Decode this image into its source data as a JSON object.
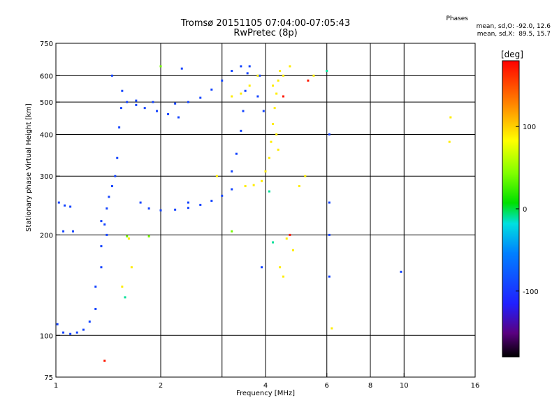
{
  "header": {
    "title_line1": "Tromsø 20151105 07:04:00-07:05:43",
    "title_line2": "RwPretec (8p)"
  },
  "stats": {
    "title": "Phases",
    "o_line": "mean, sd,O: -92.0, 12.6",
    "x_line": "mean, sd,X:  89.5, 15.7"
  },
  "colorbar": {
    "unit": "[deg]",
    "range": [
      -180,
      180
    ],
    "tick_labels": [
      "100",
      "0",
      "-100"
    ],
    "tick_values": [
      100,
      0,
      -100
    ]
  },
  "chart_data": {
    "type": "scatter",
    "title": "Tromsø 20151105 07:04:00-07:05:43",
    "subtitle": "RwPretec (8p)",
    "xlabel": "Frequency [MHz]",
    "ylabel": "Stationary phase Virtual Height [km]",
    "x_scale": "log",
    "y_scale": "log",
    "xlim": [
      1,
      16
    ],
    "ylim": [
      75,
      750
    ],
    "x_ticks": [
      1,
      2,
      4,
      6,
      8,
      10,
      16
    ],
    "x_tick_labels": [
      "1",
      "2",
      "4",
      "6",
      "8",
      "10",
      "16"
    ],
    "x_grid": [
      2,
      3,
      4,
      6,
      8,
      10
    ],
    "y_ticks": [
      75,
      100,
      200,
      300,
      400,
      500,
      600,
      750
    ],
    "y_tick_labels": [
      "75",
      "100",
      "200",
      "300",
      "400",
      "500",
      "600",
      "750"
    ],
    "y_grid": [
      100,
      200,
      300,
      400,
      500,
      600
    ],
    "grid": true,
    "color_encoding": "phase [deg]",
    "series": [
      {
        "mode": "O",
        "phase_deg": -92,
        "points": [
          [
            1.02,
            250
          ],
          [
            1.06,
            245
          ],
          [
            1.1,
            243
          ],
          [
            1.05,
            205
          ],
          [
            1.12,
            205
          ],
          [
            1.01,
            108
          ],
          [
            1.05,
            102
          ],
          [
            1.1,
            101
          ],
          [
            1.15,
            102
          ],
          [
            1.2,
            104
          ],
          [
            1.25,
            110
          ],
          [
            1.3,
            120
          ],
          [
            1.3,
            140
          ],
          [
            1.35,
            160
          ],
          [
            1.35,
            185
          ],
          [
            1.4,
            200
          ],
          [
            1.38,
            215
          ],
          [
            1.4,
            240
          ],
          [
            1.42,
            260
          ],
          [
            1.45,
            280
          ],
          [
            1.48,
            300
          ],
          [
            1.5,
            340
          ],
          [
            1.52,
            420
          ],
          [
            1.54,
            480
          ],
          [
            1.55,
            540
          ],
          [
            1.6,
            500
          ],
          [
            1.7,
            490
          ],
          [
            1.8,
            480
          ],
          [
            1.95,
            470
          ],
          [
            2.1,
            460
          ],
          [
            2.25,
            450
          ],
          [
            1.75,
            250
          ],
          [
            1.85,
            240
          ],
          [
            2.0,
            237
          ],
          [
            2.2,
            238
          ],
          [
            2.4,
            241
          ],
          [
            2.6,
            246
          ],
          [
            2.8,
            253
          ],
          [
            3.0,
            262
          ],
          [
            3.2,
            274
          ],
          [
            3.2,
            310
          ],
          [
            3.3,
            350
          ],
          [
            3.4,
            410
          ],
          [
            3.45,
            470
          ],
          [
            3.5,
            540
          ],
          [
            3.55,
            610
          ],
          [
            3.6,
            640
          ],
          [
            3.4,
            640
          ],
          [
            3.2,
            620
          ],
          [
            3.0,
            580
          ],
          [
            2.8,
            545
          ],
          [
            2.6,
            515
          ],
          [
            2.4,
            500
          ],
          [
            2.2,
            495
          ],
          [
            1.9,
            500
          ],
          [
            1.7,
            505
          ],
          [
            3.8,
            520
          ],
          [
            3.95,
            470
          ],
          [
            3.85,
            600
          ],
          [
            3.9,
            160
          ],
          [
            6.1,
            400
          ],
          [
            6.1,
            250
          ],
          [
            6.1,
            200
          ],
          [
            6.1,
            150
          ],
          [
            2.4,
            250
          ],
          [
            1.45,
            600
          ],
          [
            1.35,
            220
          ],
          [
            9.8,
            155
          ],
          [
            2.3,
            630
          ]
        ]
      },
      {
        "mode": "X",
        "phase_deg": 89.5,
        "points": [
          [
            3.5,
            280
          ],
          [
            3.7,
            282
          ],
          [
            3.9,
            290
          ],
          [
            4.0,
            310
          ],
          [
            4.1,
            340
          ],
          [
            4.15,
            380
          ],
          [
            4.2,
            430
          ],
          [
            4.25,
            480
          ],
          [
            4.3,
            530
          ],
          [
            4.35,
            580
          ],
          [
            4.4,
            620
          ],
          [
            4.5,
            600
          ],
          [
            4.3,
            400
          ],
          [
            4.35,
            360
          ],
          [
            4.2,
            560
          ],
          [
            3.2,
            520
          ],
          [
            3.4,
            530
          ],
          [
            3.6,
            560
          ],
          [
            3.8,
            600
          ],
          [
            2.9,
            300
          ],
          [
            4.5,
            150
          ],
          [
            4.4,
            160
          ],
          [
            4.6,
            195
          ],
          [
            6.2,
            105
          ],
          [
            4.8,
            180
          ],
          [
            5.2,
            300
          ],
          [
            5.0,
            280
          ],
          [
            1.62,
            195
          ],
          [
            1.65,
            160
          ],
          [
            1.55,
            140
          ],
          [
            13.5,
            380
          ],
          [
            13.6,
            450
          ],
          [
            5.5,
            600
          ],
          [
            4.7,
            640
          ]
        ]
      },
      {
        "mode": "other",
        "phase_deg": 40,
        "points": [
          [
            1.6,
            198
          ],
          [
            1.85,
            198
          ],
          [
            3.2,
            205
          ],
          [
            2.0,
            640
          ]
        ]
      },
      {
        "mode": "other",
        "phase_deg": 170,
        "points": [
          [
            1.38,
            84
          ],
          [
            4.7,
            200
          ],
          [
            5.3,
            580
          ],
          [
            4.5,
            520
          ]
        ]
      },
      {
        "mode": "other",
        "phase_deg": -10,
        "points": [
          [
            4.2,
            190
          ],
          [
            1.58,
            130
          ],
          [
            6.0,
            620
          ],
          [
            4.1,
            270
          ]
        ]
      }
    ]
  }
}
